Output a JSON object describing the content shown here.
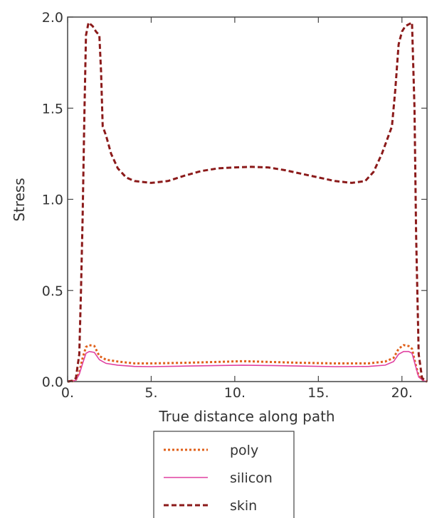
{
  "chart_data": {
    "type": "line",
    "title": "",
    "xlabel": "True distance along path",
    "ylabel": "Stress",
    "xlim": [
      0,
      21.5
    ],
    "ylim": [
      0,
      2.0
    ],
    "x_ticks": [
      0,
      5,
      10,
      15,
      20
    ],
    "x_tick_labels": [
      "0.",
      "5.",
      "10.",
      "15.",
      "20."
    ],
    "y_ticks": [
      0,
      0.5,
      1.0,
      1.5,
      2.0
    ],
    "y_tick_labels": [
      "0.0",
      "0.5",
      "1.0",
      "1.5",
      "2.0"
    ],
    "grid": false,
    "legend_position": "bottom-center",
    "series": [
      {
        "name": "poly",
        "color": "#e0601a",
        "style": "dotted",
        "points": [
          [
            0,
            0
          ],
          [
            0.3,
            0.002
          ],
          [
            0.5,
            0.01
          ],
          [
            0.7,
            0.05
          ],
          [
            0.9,
            0.13
          ],
          [
            1.1,
            0.19
          ],
          [
            1.3,
            0.2
          ],
          [
            1.6,
            0.195
          ],
          [
            1.9,
            0.14
          ],
          [
            2.3,
            0.12
          ],
          [
            3,
            0.11
          ],
          [
            4,
            0.1
          ],
          [
            5,
            0.1
          ],
          [
            7,
            0.103
          ],
          [
            9,
            0.108
          ],
          [
            10.5,
            0.112
          ],
          [
            12,
            0.108
          ],
          [
            14,
            0.103
          ],
          [
            16,
            0.1
          ],
          [
            18,
            0.1
          ],
          [
            19,
            0.11
          ],
          [
            19.5,
            0.13
          ],
          [
            19.8,
            0.18
          ],
          [
            20.1,
            0.2
          ],
          [
            20.4,
            0.195
          ],
          [
            20.6,
            0.18
          ],
          [
            20.8,
            0.1
          ],
          [
            21,
            0.03
          ],
          [
            21.3,
            0.005
          ],
          [
            21.5,
            0
          ]
        ]
      },
      {
        "name": "silicon",
        "color": "#e040a0",
        "style": "solid",
        "points": [
          [
            0,
            0
          ],
          [
            0.3,
            0.002
          ],
          [
            0.5,
            0.008
          ],
          [
            0.7,
            0.04
          ],
          [
            0.9,
            0.1
          ],
          [
            1.1,
            0.155
          ],
          [
            1.3,
            0.165
          ],
          [
            1.6,
            0.16
          ],
          [
            1.9,
            0.12
          ],
          [
            2.3,
            0.1
          ],
          [
            3,
            0.09
          ],
          [
            4,
            0.083
          ],
          [
            5,
            0.082
          ],
          [
            7,
            0.085
          ],
          [
            9,
            0.088
          ],
          [
            10.5,
            0.09
          ],
          [
            12,
            0.088
          ],
          [
            14,
            0.085
          ],
          [
            16,
            0.082
          ],
          [
            18,
            0.083
          ],
          [
            19,
            0.09
          ],
          [
            19.5,
            0.11
          ],
          [
            19.8,
            0.15
          ],
          [
            20.1,
            0.165
          ],
          [
            20.4,
            0.165
          ],
          [
            20.6,
            0.155
          ],
          [
            20.8,
            0.09
          ],
          [
            21,
            0.025
          ],
          [
            21.3,
            0.004
          ],
          [
            21.5,
            0
          ]
        ]
      },
      {
        "name": "skin",
        "color": "#8b1a1a",
        "style": "dashed",
        "points": [
          [
            0,
            0
          ],
          [
            0.3,
            0.005
          ],
          [
            0.5,
            0.02
          ],
          [
            0.7,
            0.15
          ],
          [
            0.8,
            0.5
          ],
          [
            0.9,
            0.9
          ],
          [
            1.0,
            1.45
          ],
          [
            1.1,
            1.9
          ],
          [
            1.25,
            1.97
          ],
          [
            1.5,
            1.95
          ],
          [
            1.7,
            1.92
          ],
          [
            1.9,
            1.9
          ],
          [
            2.0,
            1.7
          ],
          [
            2.1,
            1.4
          ],
          [
            2.3,
            1.35
          ],
          [
            2.6,
            1.25
          ],
          [
            3,
            1.17
          ],
          [
            3.5,
            1.12
          ],
          [
            4,
            1.1
          ],
          [
            5,
            1.09
          ],
          [
            6,
            1.1
          ],
          [
            7,
            1.13
          ],
          [
            8,
            1.155
          ],
          [
            9,
            1.17
          ],
          [
            10,
            1.175
          ],
          [
            11,
            1.178
          ],
          [
            12,
            1.175
          ],
          [
            13,
            1.16
          ],
          [
            14,
            1.14
          ],
          [
            15,
            1.12
          ],
          [
            16,
            1.1
          ],
          [
            17,
            1.09
          ],
          [
            17.8,
            1.1
          ],
          [
            18.3,
            1.15
          ],
          [
            18.8,
            1.25
          ],
          [
            19.2,
            1.35
          ],
          [
            19.4,
            1.4
          ],
          [
            19.6,
            1.6
          ],
          [
            19.8,
            1.85
          ],
          [
            20.0,
            1.92
          ],
          [
            20.2,
            1.95
          ],
          [
            20.4,
            1.96
          ],
          [
            20.6,
            1.97
          ],
          [
            20.75,
            1.5
          ],
          [
            20.85,
            0.8
          ],
          [
            21.0,
            0.15
          ],
          [
            21.2,
            0.02
          ],
          [
            21.5,
            0
          ]
        ]
      }
    ]
  }
}
